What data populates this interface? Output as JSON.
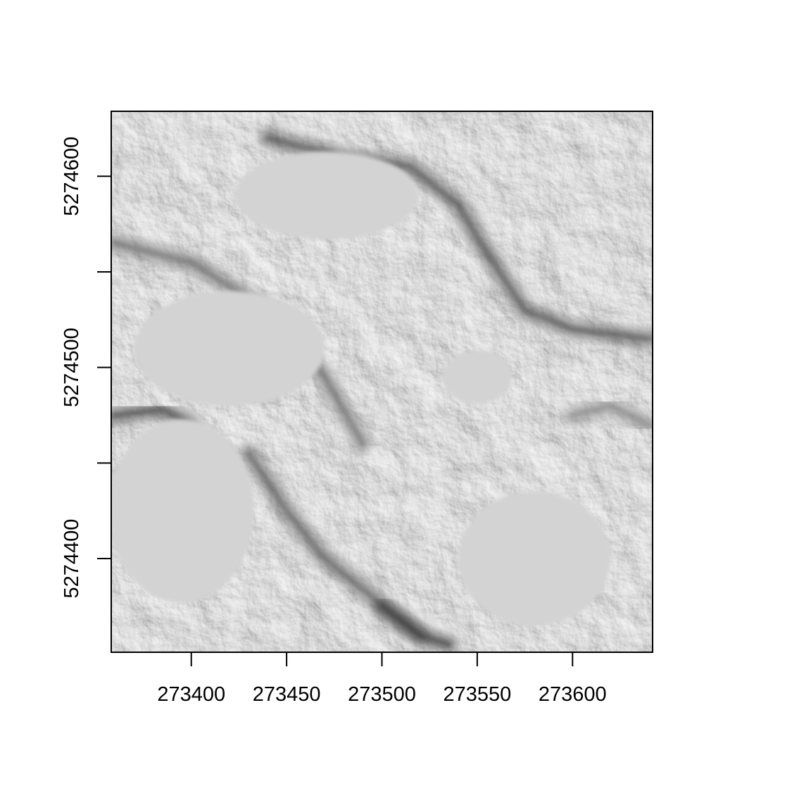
{
  "chart_data": {
    "type": "heatmap",
    "title": "",
    "xlabel": "",
    "ylabel": "",
    "description": "",
    "colormap": "grayscale-hillshade",
    "xlim": [
      273358,
      273642
    ],
    "ylim": [
      5274351,
      5274634
    ],
    "x_ticks": [
      273400,
      273450,
      273500,
      273550,
      273600
    ],
    "x_tick_labels": [
      "273400",
      "273450",
      "273500",
      "273550",
      "273600"
    ],
    "y_ticks": [
      5274400,
      5274450,
      5274500,
      5274550,
      5274600
    ],
    "y_tick_labels": [
      "5274400",
      "",
      "5274500",
      "",
      "5274600"
    ],
    "flat_areas": [
      {
        "cx": 273471,
        "cy": 5274590,
        "rx": 48,
        "ry": 23
      },
      {
        "cx": 273420,
        "cy": 5274510,
        "rx": 50,
        "ry": 30
      },
      {
        "cx": 273395,
        "cy": 5274425,
        "rx": 38,
        "ry": 48
      },
      {
        "cx": 273550,
        "cy": 5274495,
        "rx": 18,
        "ry": 14
      },
      {
        "cx": 273580,
        "cy": 5274400,
        "rx": 40,
        "ry": 35
      }
    ],
    "ridges": [
      {
        "points": [
          [
            273360,
            5274565
          ],
          [
            273400,
            5274555
          ],
          [
            273440,
            5274530
          ],
          [
            273470,
            5274495
          ],
          [
            273490,
            5274460
          ]
        ],
        "darkness": 0.55
      },
      {
        "points": [
          [
            273430,
            5274455
          ],
          [
            273450,
            5274425
          ],
          [
            273470,
            5274400
          ],
          [
            273495,
            5274380
          ],
          [
            273520,
            5274360
          ]
        ],
        "darkness": 0.6
      },
      {
        "points": [
          [
            273440,
            5274620
          ],
          [
            273480,
            5274610
          ],
          [
            273515,
            5274605
          ],
          [
            273540,
            5274585
          ],
          [
            273555,
            5274560
          ],
          [
            273575,
            5274530
          ],
          [
            273600,
            5274520
          ],
          [
            273640,
            5274515
          ]
        ],
        "darkness": 0.65
      },
      {
        "points": [
          [
            273360,
            5274475
          ],
          [
            273385,
            5274478
          ],
          [
            273400,
            5274470
          ]
        ],
        "darkness": 0.7
      },
      {
        "points": [
          [
            273500,
            5274375
          ],
          [
            273520,
            5274360
          ],
          [
            273535,
            5274355
          ]
        ],
        "darkness": 0.75
      },
      {
        "points": [
          [
            273600,
            5274475
          ],
          [
            273620,
            5274480
          ],
          [
            273640,
            5274470
          ]
        ],
        "darkness": 0.45
      }
    ]
  }
}
